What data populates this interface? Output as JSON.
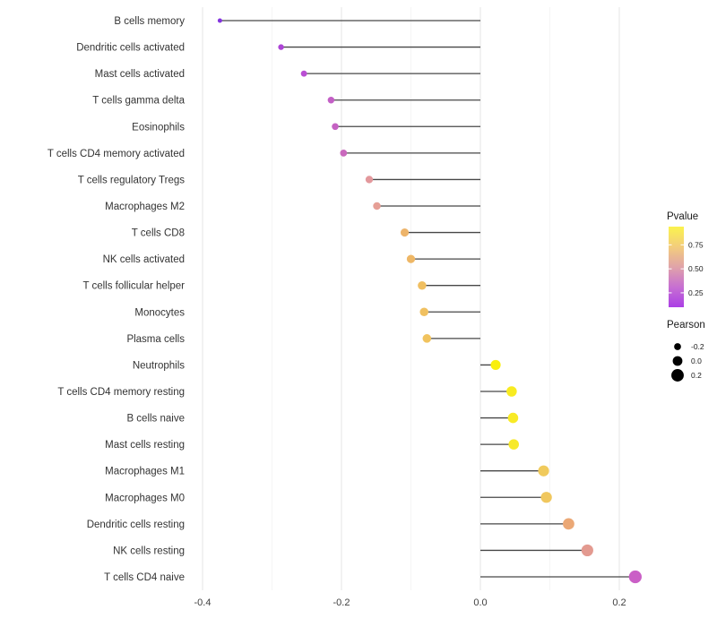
{
  "chart_data": {
    "type": "lollipop",
    "orientation": "horizontal",
    "title": "",
    "xlabel": "",
    "ylabel": "",
    "grid": "vertical-only",
    "x_ticks": [
      -0.4,
      -0.2,
      0.0,
      0.2
    ],
    "x_tick_labels": [
      "-0.4",
      "-0.2",
      "0.0",
      "0.2"
    ],
    "x_minor_ticks": [
      -0.3,
      -0.1,
      0.1
    ],
    "xlim": [
      -0.405,
      0.255
    ],
    "rows": [
      {
        "label": "B cells memory",
        "pearson": -0.375,
        "color": "#8435df"
      },
      {
        "label": "Dendritic cells activated",
        "pearson": -0.287,
        "color": "#ad44d6"
      },
      {
        "label": "Mast cells activated",
        "pearson": -0.254,
        "color": "#b94ed3"
      },
      {
        "label": "T cells gamma delta",
        "pearson": -0.215,
        "color": "#c35fc6"
      },
      {
        "label": "Eosinophils",
        "pearson": -0.209,
        "color": "#c563c3"
      },
      {
        "label": "T cells CD4 memory activated",
        "pearson": -0.197,
        "color": "#c968bd"
      },
      {
        "label": "T cells regulatory  Tregs",
        "pearson": -0.16,
        "color": "#e3989c"
      },
      {
        "label": "Macrophages M2",
        "pearson": -0.149,
        "color": "#e69f96"
      },
      {
        "label": "T cells CD8",
        "pearson": -0.109,
        "color": "#edb46a"
      },
      {
        "label": "NK cells activated",
        "pearson": -0.1,
        "color": "#eeb766"
      },
      {
        "label": "T cells follicular helper",
        "pearson": -0.084,
        "color": "#f0bf61"
      },
      {
        "label": "Monocytes",
        "pearson": -0.081,
        "color": "#f0c060"
      },
      {
        "label": "Plasma cells",
        "pearson": -0.077,
        "color": "#f1c35e"
      },
      {
        "label": "Neutrophils",
        "pearson": 0.022,
        "color": "#f9ef0d"
      },
      {
        "label": "T cells CD4 memory resting",
        "pearson": 0.045,
        "color": "#f8eb21"
      },
      {
        "label": "B cells naive",
        "pearson": 0.047,
        "color": "#f8ea26"
      },
      {
        "label": "Mast cells resting",
        "pearson": 0.048,
        "color": "#f7e92a"
      },
      {
        "label": "Macrophages M1",
        "pearson": 0.091,
        "color": "#f0ca5c"
      },
      {
        "label": "Macrophages M0",
        "pearson": 0.095,
        "color": "#f0c75e"
      },
      {
        "label": "Dendritic cells resting",
        "pearson": 0.127,
        "color": "#eba876"
      },
      {
        "label": "NK cells resting",
        "pearson": 0.154,
        "color": "#e39a90"
      },
      {
        "label": "T cells CD4 naive",
        "pearson": 0.223,
        "color": "#ca5fc6"
      }
    ],
    "legend": {
      "pvalue": {
        "title": "Pvalue",
        "tick_labels": [
          "0.75",
          "0.50",
          "0.25"
        ],
        "tick_values": [
          0.75,
          0.5,
          0.25
        ],
        "bar_domain_top": 0.94,
        "bar_domain_bottom": 0.1,
        "gradient_top_to_bottom": [
          "#fbf34e",
          "#f3cd7c",
          "#e0a3a9",
          "#c76fd2",
          "#ab3fe5"
        ]
      },
      "pearson": {
        "title": "Pearson",
        "tick_labels": [
          "-0.2",
          "0.0",
          "0.2"
        ],
        "tick_values": [
          -0.2,
          0.0,
          0.2
        ],
        "dot_color": "#000000"
      }
    }
  },
  "colors": {
    "background": "#ffffff",
    "stem": "#474747",
    "grid_major": "#e6e6e6",
    "grid_minor": "#f4f4f4",
    "axis_tick_text": "#404040",
    "y_label_text": "#333333",
    "legend_text": "#1a1a1a",
    "colorbar_tick": "#ffffff"
  }
}
